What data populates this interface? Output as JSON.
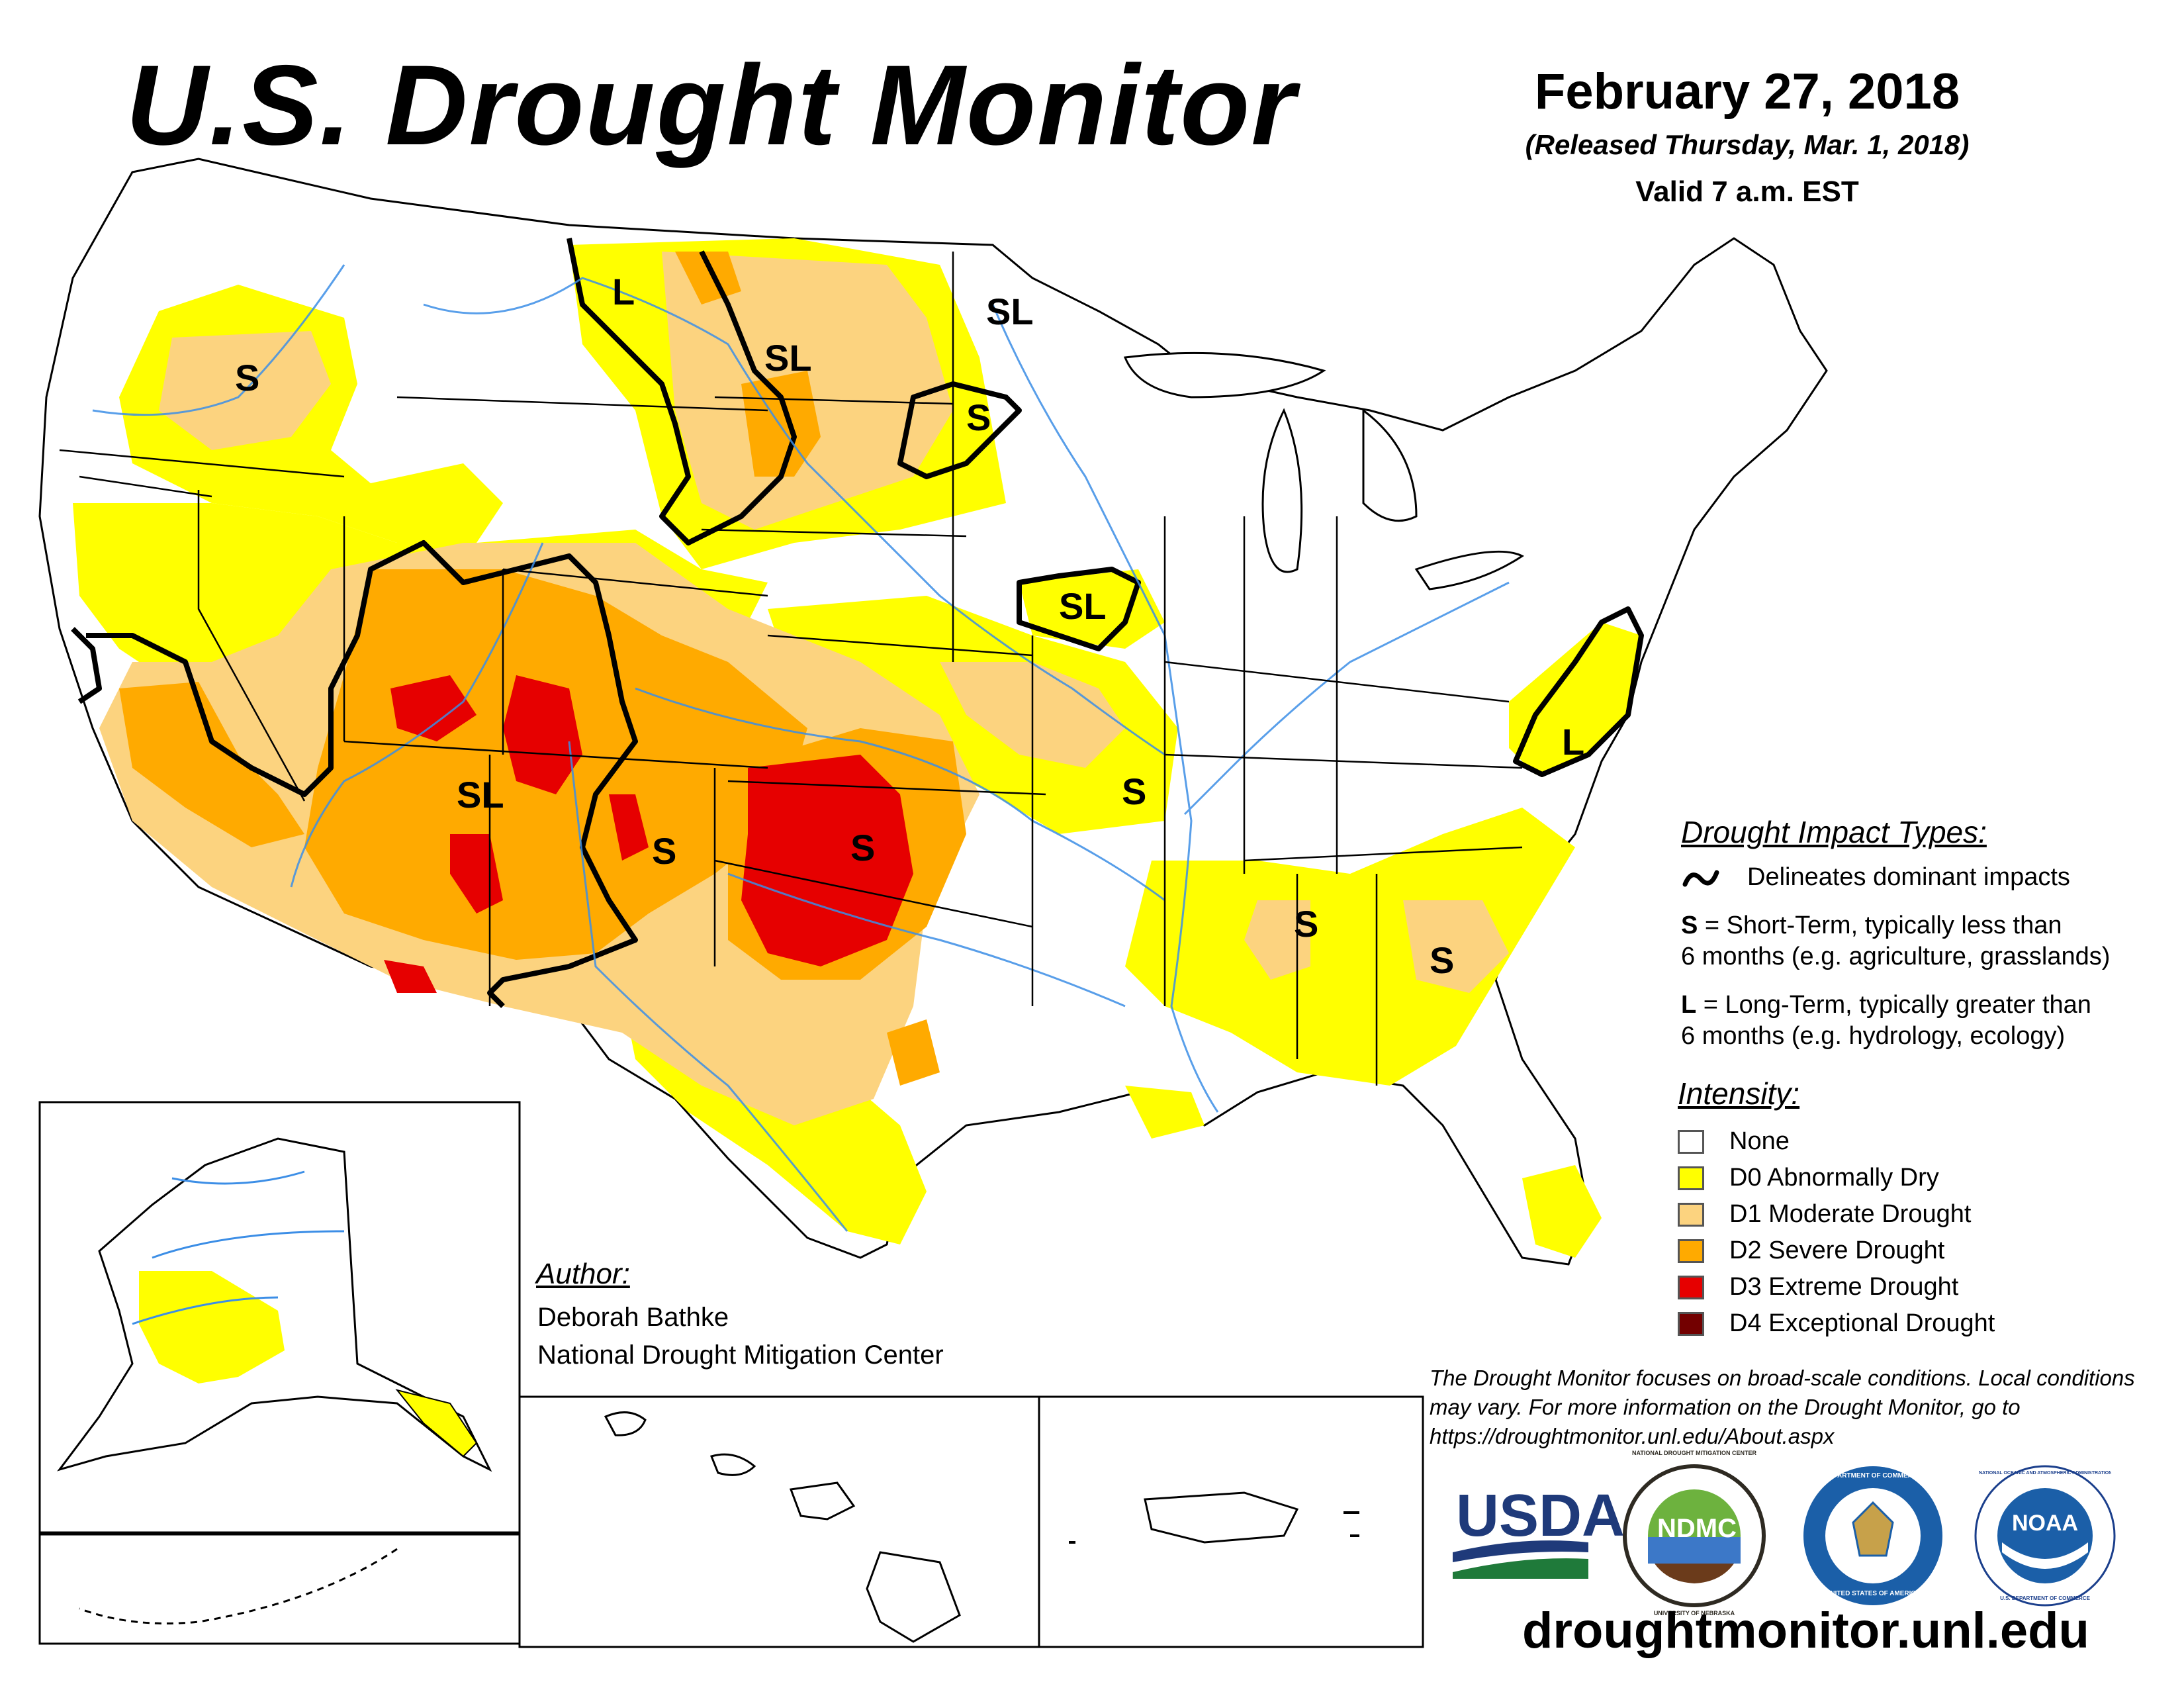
{
  "header": {
    "title": "U.S. Drought Monitor",
    "date": "February 27, 2018",
    "released": "(Released Thursday, Mar. 1, 2018)",
    "valid": "Valid 7 a.m. EST"
  },
  "impact_legend": {
    "heading": "Drought Impact Types:",
    "delineates": "Delineates dominant impacts",
    "s_key": "S",
    "s_line1": " = Short-Term, typically less than",
    "s_line2": "6 months (e.g. agriculture, grasslands)",
    "l_key": "L",
    "l_line1": " = Long-Term, typically greater than",
    "l_line2": "6 months (e.g. hydrology, ecology)"
  },
  "intensity_legend": {
    "heading": "Intensity:",
    "items": [
      {
        "label": "None",
        "color": "#ffffff"
      },
      {
        "label": "D0 Abnormally Dry",
        "color": "#ffff00"
      },
      {
        "label": "D1 Moderate Drought",
        "color": "#fcd37f"
      },
      {
        "label": "D2 Severe Drought",
        "color": "#ffaa00"
      },
      {
        "label": "D3 Extreme Drought",
        "color": "#e60000"
      },
      {
        "label": "D4 Exceptional Drought",
        "color": "#730000"
      }
    ]
  },
  "map_labels": {
    "s": "S",
    "l": "L",
    "sl": "SL"
  },
  "author": {
    "heading": "Author:",
    "name": "Deborah Bathke",
    "org": "National Drought Mitigation Center"
  },
  "disclaimer": "The Drought Monitor focuses on broad-scale conditions. Local conditions may vary. For more information on the Drought Monitor, go to https://droughtmonitor.unl.edu/About.aspx",
  "logos": {
    "usda": "USDA",
    "ndmc": "NDMC",
    "ndmc_ring_top": "NATIONAL DROUGHT MITIGATION CENTER",
    "ndmc_ring_bottom": "UNIVERSITY OF NEBRASKA",
    "commerce_ring_top": "DEPARTMENT OF COMMERCE",
    "commerce_ring_bottom": "UNITED STATES OF AMERICA",
    "noaa": "NOAA",
    "noaa_ring_top": "NATIONAL OCEANIC AND ATMOSPHERIC ADMINISTRATION",
    "noaa_ring_bottom": "U.S. DEPARTMENT OF COMMERCE"
  },
  "url": "droughtmonitor.unl.edu"
}
